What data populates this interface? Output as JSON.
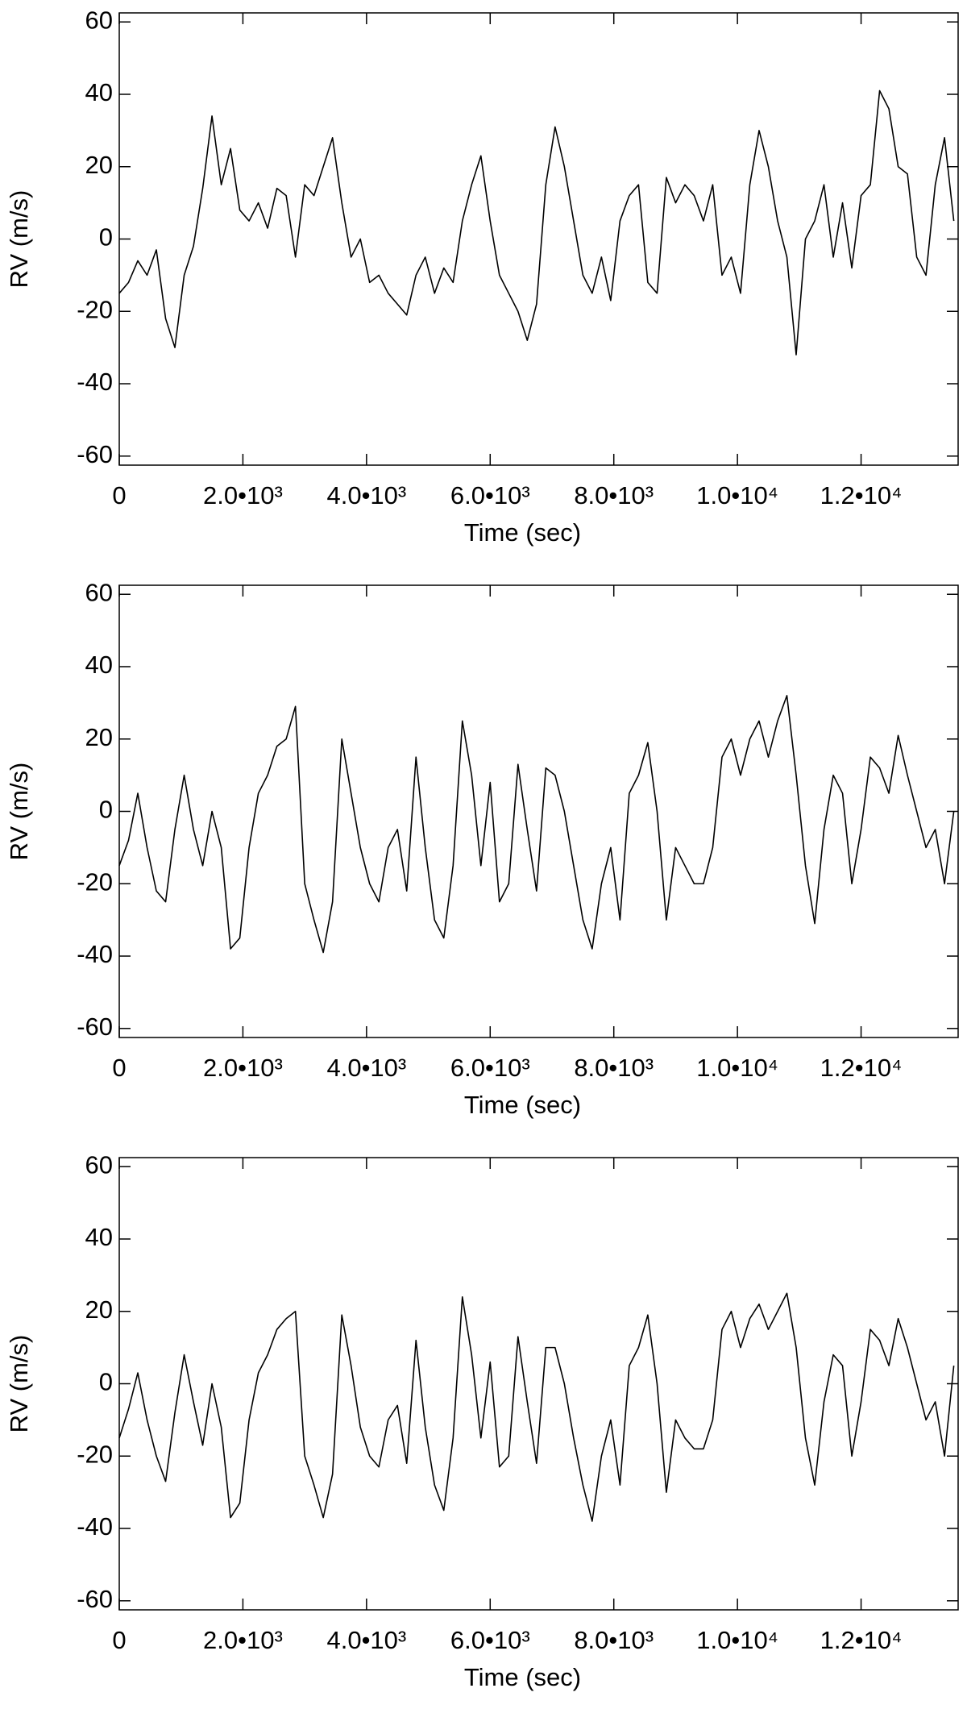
{
  "chart_data": [
    {
      "type": "line",
      "x_label": "Time (sec)",
      "y_label": "RV (m/s)",
      "color": "#000000",
      "xlim": [
        0,
        13570
      ],
      "ylim": [
        -62.5,
        62.5
      ],
      "xticks": [
        0,
        {
          "value": 2000,
          "label": "2.0•10³"
        },
        {
          "value": 4000,
          "label": "4.0•10³"
        },
        {
          "value": 6000,
          "label": "6.0•10³"
        },
        {
          "value": 8000,
          "label": "8.0•10³"
        },
        {
          "value": 10000,
          "label": "1.0•10⁴"
        },
        {
          "value": 12000,
          "label": "1.2•10⁴"
        }
      ],
      "yticks": [
        -60,
        -40,
        -20,
        0,
        20,
        40,
        60
      ],
      "x": [
        0,
        150,
        300,
        450,
        600,
        750,
        900,
        1050,
        1200,
        1350,
        1500,
        1650,
        1800,
        1950,
        2100,
        2250,
        2400,
        2550,
        2700,
        2850,
        3000,
        3150,
        3300,
        3450,
        3600,
        3750,
        3900,
        4050,
        4200,
        4350,
        4500,
        4650,
        4800,
        4950,
        5100,
        5250,
        5400,
        5550,
        5700,
        5850,
        6000,
        6150,
        6300,
        6450,
        6600,
        6750,
        6900,
        7050,
        7200,
        7350,
        7500,
        7650,
        7800,
        7950,
        8100,
        8250,
        8400,
        8550,
        8700,
        8850,
        9000,
        9150,
        9300,
        9450,
        9600,
        9750,
        9900,
        10050,
        10200,
        10350,
        10500,
        10650,
        10800,
        10950,
        11100,
        11250,
        11400,
        11550,
        11700,
        11850,
        12000,
        12150,
        12300,
        12450,
        12600,
        12750,
        12900,
        13050,
        13200,
        13350,
        13500
      ],
      "values": [
        -15,
        -12,
        -6,
        -10,
        -3,
        -22,
        -30,
        -10,
        -2,
        14,
        34,
        15,
        25,
        8,
        5,
        10,
        3,
        14,
        12,
        -5,
        15,
        12,
        20,
        28,
        10,
        -5,
        0,
        -12,
        -10,
        -15,
        -18,
        -21,
        -10,
        -5,
        -15,
        -8,
        -12,
        5,
        15,
        23,
        5,
        -10,
        -15,
        -20,
        -28,
        -18,
        15,
        31,
        20,
        5,
        -10,
        -15,
        -5,
        -17,
        5,
        12,
        15,
        -12,
        -15,
        17,
        10,
        15,
        12,
        5,
        15,
        -10,
        -5,
        -15,
        15,
        30,
        20,
        5,
        -5,
        -32,
        0,
        5,
        15,
        -5,
        10,
        -8,
        12,
        15,
        41,
        36,
        20,
        18,
        -5,
        -10,
        15,
        28,
        5
      ]
    },
    {
      "type": "line",
      "x_label": "Time (sec)",
      "y_label": "RV (m/s)",
      "color": "#000000",
      "xlim": [
        0,
        13570
      ],
      "ylim": [
        -62.5,
        62.5
      ],
      "xticks": [
        0,
        {
          "value": 2000,
          "label": "2.0•10³"
        },
        {
          "value": 4000,
          "label": "4.0•10³"
        },
        {
          "value": 6000,
          "label": "6.0•10³"
        },
        {
          "value": 8000,
          "label": "8.0•10³"
        },
        {
          "value": 10000,
          "label": "1.0•10⁴"
        },
        {
          "value": 12000,
          "label": "1.2•10⁴"
        }
      ],
      "yticks": [
        -60,
        -40,
        -20,
        0,
        20,
        40,
        60
      ],
      "x": [
        0,
        150,
        300,
        450,
        600,
        750,
        900,
        1050,
        1200,
        1350,
        1500,
        1650,
        1800,
        1950,
        2100,
        2250,
        2400,
        2550,
        2700,
        2850,
        3000,
        3150,
        3300,
        3450,
        3600,
        3750,
        3900,
        4050,
        4200,
        4350,
        4500,
        4650,
        4800,
        4950,
        5100,
        5250,
        5400,
        5550,
        5700,
        5850,
        6000,
        6150,
        6300,
        6450,
        6600,
        6750,
        6900,
        7050,
        7200,
        7350,
        7500,
        7650,
        7800,
        7950,
        8100,
        8250,
        8400,
        8550,
        8700,
        8850,
        9000,
        9150,
        9300,
        9450,
        9600,
        9750,
        9900,
        10050,
        10200,
        10350,
        10500,
        10650,
        10800,
        10950,
        11100,
        11250,
        11400,
        11550,
        11700,
        11850,
        12000,
        12150,
        12300,
        12450,
        12600,
        12750,
        12900,
        13050,
        13200,
        13350,
        13500
      ],
      "values": [
        -15,
        -8,
        5,
        -10,
        -22,
        -25,
        -5,
        10,
        -5,
        -15,
        0,
        -10,
        -38,
        -35,
        -10,
        5,
        10,
        18,
        20,
        29,
        -20,
        -30,
        -39,
        -25,
        20,
        5,
        -10,
        -20,
        -25,
        -10,
        -5,
        -22,
        15,
        -10,
        -30,
        -35,
        -15,
        25,
        10,
        -15,
        8,
        -25,
        -20,
        13,
        -5,
        -22,
        12,
        10,
        0,
        -15,
        -30,
        -38,
        -20,
        -10,
        -30,
        5,
        10,
        19,
        0,
        -30,
        -10,
        -15,
        -20,
        -20,
        -10,
        15,
        20,
        10,
        20,
        25,
        15,
        25,
        32,
        10,
        -15,
        -31,
        -5,
        10,
        5,
        -20,
        -5,
        15,
        12,
        5,
        21,
        10,
        0,
        -10,
        -5,
        -20,
        0
      ]
    },
    {
      "type": "line",
      "x_label": "Time (sec)",
      "y_label": "RV (m/s)",
      "color": "#000000",
      "xlim": [
        0,
        13570
      ],
      "ylim": [
        -62.5,
        62.5
      ],
      "xticks": [
        0,
        {
          "value": 2000,
          "label": "2.0•10³"
        },
        {
          "value": 4000,
          "label": "4.0•10³"
        },
        {
          "value": 6000,
          "label": "6.0•10³"
        },
        {
          "value": 8000,
          "label": "8.0•10³"
        },
        {
          "value": 10000,
          "label": "1.0•10⁴"
        },
        {
          "value": 12000,
          "label": "1.2•10⁴"
        }
      ],
      "yticks": [
        -60,
        -40,
        -20,
        0,
        20,
        40,
        60
      ],
      "x": [
        0,
        150,
        300,
        450,
        600,
        750,
        900,
        1050,
        1200,
        1350,
        1500,
        1650,
        1800,
        1950,
        2100,
        2250,
        2400,
        2550,
        2700,
        2850,
        3000,
        3150,
        3300,
        3450,
        3600,
        3750,
        3900,
        4050,
        4200,
        4350,
        4500,
        4650,
        4800,
        4950,
        5100,
        5250,
        5400,
        5550,
        5700,
        5850,
        6000,
        6150,
        6300,
        6450,
        6600,
        6750,
        6900,
        7050,
        7200,
        7350,
        7500,
        7650,
        7800,
        7950,
        8100,
        8250,
        8400,
        8550,
        8700,
        8850,
        9000,
        9150,
        9300,
        9450,
        9600,
        9750,
        9900,
        10050,
        10200,
        10350,
        10500,
        10650,
        10800,
        10950,
        11100,
        11250,
        11400,
        11550,
        11700,
        11850,
        12000,
        12150,
        12300,
        12450,
        12600,
        12750,
        12900,
        13050,
        13200,
        13350,
        13500
      ],
      "values": [
        -15,
        -7,
        3,
        -10,
        -20,
        -27,
        -8,
        8,
        -5,
        -17,
        0,
        -12,
        -37,
        -33,
        -10,
        3,
        8,
        15,
        18,
        20,
        -20,
        -28,
        -37,
        -25,
        19,
        5,
        -12,
        -20,
        -23,
        -10,
        -6,
        -22,
        12,
        -12,
        -28,
        -35,
        -15,
        24,
        8,
        -15,
        6,
        -23,
        -20,
        13,
        -5,
        -22,
        10,
        10,
        0,
        -15,
        -28,
        -38,
        -20,
        -10,
        -28,
        5,
        10,
        19,
        0,
        -30,
        -10,
        -15,
        -18,
        -18,
        -10,
        15,
        20,
        10,
        18,
        22,
        15,
        20,
        25,
        10,
        -15,
        -28,
        -5,
        8,
        5,
        -20,
        -5,
        15,
        12,
        5,
        18,
        10,
        0,
        -10,
        -5,
        -20,
        5
      ]
    }
  ]
}
